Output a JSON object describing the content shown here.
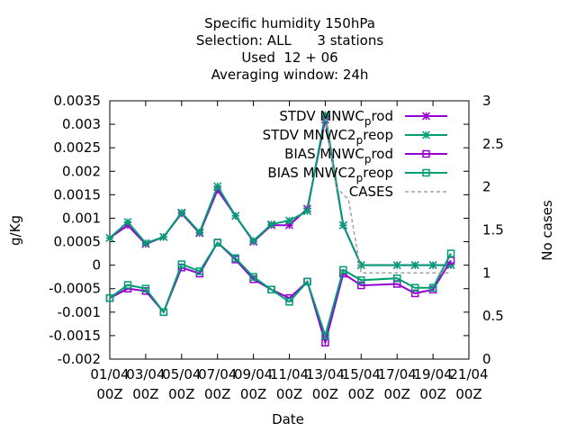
{
  "chart_data": {
    "type": "line",
    "title_lines": [
      "Specific humidity 150hPa",
      "Selection: ALL      3 stations",
      "Used  12 + 06",
      "Averaging window: 24h"
    ],
    "xlabel": "Date",
    "ylabel": "g/Kg",
    "y2label": "No cases",
    "ylim": [
      -0.002,
      0.0035
    ],
    "y2lim": [
      0,
      3
    ],
    "yticks": [
      "0.0035",
      "0.003",
      "0.0025",
      "0.002",
      "0.0015",
      "0.001",
      "0.0005",
      "0",
      "-0.0005",
      "-0.001",
      "-0.0015",
      "-0.002"
    ],
    "y2ticks": [
      "3",
      "2.5",
      "2",
      "1.5",
      "1",
      "0.5",
      "0"
    ],
    "xticks": [
      {
        "date": "01/04",
        "time": "00Z"
      },
      {
        "date": "03/04",
        "time": "00Z"
      },
      {
        "date": "05/04",
        "time": "00Z"
      },
      {
        "date": "07/04",
        "time": "00Z"
      },
      {
        "date": "09/04",
        "time": "00Z"
      },
      {
        "date": "11/04",
        "time": "00Z"
      },
      {
        "date": "13/04",
        "time": "00Z"
      },
      {
        "date": "15/04",
        "time": "00Z"
      },
      {
        "date": "17/04",
        "time": "00Z"
      },
      {
        "date": "19/04",
        "time": "00Z"
      },
      {
        "date": "21/04",
        "time": "00Z"
      }
    ],
    "xlim": [
      0,
      20
    ],
    "legend_position": "top-right",
    "series": [
      {
        "name_main": "STDV MNWC",
        "name_sub": "p",
        "name_tail": "rod",
        "color": "#9400d3",
        "marker": "star",
        "axis": "y1",
        "points": [
          [
            0,
            0.00058
          ],
          [
            1,
            0.00085
          ],
          [
            2,
            0.00045
          ],
          [
            3,
            0.0006
          ],
          [
            4,
            0.0011
          ],
          [
            5,
            0.00068
          ],
          [
            6,
            0.0016
          ],
          [
            7,
            0.00105
          ],
          [
            8,
            0.0005
          ],
          [
            9,
            0.00085
          ],
          [
            10,
            0.00085
          ],
          [
            11,
            0.0012
          ],
          [
            12,
            0.0031
          ],
          [
            13,
            0.00085
          ],
          [
            14,
            0.0
          ],
          [
            16,
            0.0
          ],
          [
            17,
            0.0
          ],
          [
            18,
            0.0
          ],
          [
            19,
            0.0
          ]
        ]
      },
      {
        "name_main": "STDV MNWC2",
        "name_sub": "p",
        "name_tail": "reop",
        "color": "#009e73",
        "marker": "star",
        "axis": "y1",
        "points": [
          [
            0,
            0.00058
          ],
          [
            1,
            0.00092
          ],
          [
            2,
            0.00047
          ],
          [
            3,
            0.0006
          ],
          [
            4,
            0.00112
          ],
          [
            5,
            0.0007
          ],
          [
            6,
            0.00168
          ],
          [
            7,
            0.00105
          ],
          [
            8,
            0.00052
          ],
          [
            9,
            0.00087
          ],
          [
            10,
            0.00095
          ],
          [
            11,
            0.00115
          ],
          [
            12,
            0.0032
          ],
          [
            13,
            0.00085
          ],
          [
            14,
            0.0
          ],
          [
            16,
            0.0
          ],
          [
            17,
            0.0
          ],
          [
            18,
            0.0
          ],
          [
            19,
            0.0
          ]
        ]
      },
      {
        "name_main": "BIAS MNWC",
        "name_sub": "p",
        "name_tail": "rod",
        "color": "#9400d3",
        "marker": "square",
        "axis": "y1",
        "points": [
          [
            0,
            -0.0007
          ],
          [
            1,
            -0.0005
          ],
          [
            2,
            -0.00055
          ],
          [
            3,
            -0.001
          ],
          [
            4,
            -5e-05
          ],
          [
            5,
            -0.00018
          ],
          [
            6,
            0.00048
          ],
          [
            7,
            0.00012
          ],
          [
            8,
            -0.0003
          ],
          [
            9,
            -0.00052
          ],
          [
            10,
            -0.0007
          ],
          [
            11,
            -0.00035
          ],
          [
            12,
            -0.00165
          ],
          [
            13,
            -0.00018
          ],
          [
            14,
            -0.00043
          ],
          [
            16,
            -0.0004
          ],
          [
            17,
            -0.0006
          ],
          [
            18,
            -0.00052
          ],
          [
            19,
            0.0001
          ]
        ]
      },
      {
        "name_main": "BIAS MNWC2",
        "name_sub": "p",
        "name_tail": "reop",
        "color": "#009e73",
        "marker": "square",
        "axis": "y1",
        "points": [
          [
            0,
            -0.0007
          ],
          [
            1,
            -0.00042
          ],
          [
            2,
            -0.0005
          ],
          [
            3,
            -0.001
          ],
          [
            4,
            2e-05
          ],
          [
            5,
            -0.00013
          ],
          [
            6,
            0.00048
          ],
          [
            7,
            0.00015
          ],
          [
            8,
            -0.00025
          ],
          [
            9,
            -0.00052
          ],
          [
            10,
            -0.00078
          ],
          [
            11,
            -0.00035
          ],
          [
            12,
            -0.0015
          ],
          [
            13,
            -0.0001
          ],
          [
            14,
            -0.00032
          ],
          [
            16,
            -0.00028
          ],
          [
            17,
            -0.00048
          ],
          [
            18,
            -0.00048
          ],
          [
            19,
            0.00025
          ]
        ]
      },
      {
        "name_main": "CASES",
        "name_sub": "",
        "name_tail": "",
        "color": "#a0a0a0",
        "marker": "none",
        "dashed": true,
        "axis": "y2",
        "points": [
          [
            12,
            2.8
          ],
          [
            12.6,
            2.0
          ],
          [
            13.3,
            1.85
          ],
          [
            14,
            1.0
          ],
          [
            18,
            1.0
          ],
          [
            19,
            1.0
          ]
        ]
      }
    ]
  }
}
